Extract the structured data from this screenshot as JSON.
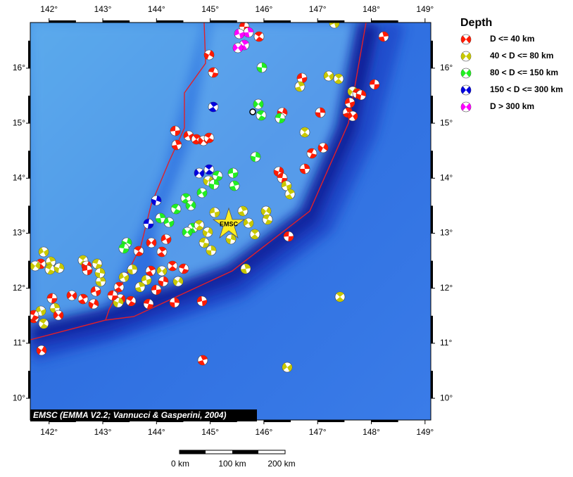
{
  "map": {
    "lon_ticks": [
      {
        "value": 142,
        "label": "142°"
      },
      {
        "value": 143,
        "label": "143°"
      },
      {
        "value": 144,
        "label": "144°"
      },
      {
        "value": 145,
        "label": "145°"
      },
      {
        "value": 146,
        "label": "146°"
      },
      {
        "value": 147,
        "label": "147°"
      },
      {
        "value": 148,
        "label": "148°"
      },
      {
        "value": 149,
        "label": "149°"
      }
    ],
    "lat_ticks": [
      {
        "value": 10,
        "label": "10°"
      },
      {
        "value": 11,
        "label": "11°"
      },
      {
        "value": 12,
        "label": "12°"
      },
      {
        "value": 13,
        "label": "13°"
      },
      {
        "value": 14,
        "label": "14°"
      },
      {
        "value": 15,
        "label": "15°"
      },
      {
        "value": 16,
        "label": "16°"
      }
    ],
    "epicenter_label": "EMSC",
    "credit": "EMSC (EMMA V2.2; Vannucci & Gasperini, 2004)"
  },
  "legend": {
    "title": "Depth",
    "items": [
      {
        "label": "D <= 40 km",
        "color": "#ff1a00"
      },
      {
        "label": "40 < D <= 80 km",
        "color": "#c8c800"
      },
      {
        "label": "80 < D <= 150 km",
        "color": "#22ee22"
      },
      {
        "label": "150 < D <= 300 km",
        "color": "#0000dd"
      },
      {
        "label": "D > 300 km",
        "color": "#ff00ff"
      }
    ]
  },
  "scale_bar": {
    "labels": [
      "0 km",
      "100 km",
      "200 km"
    ]
  }
}
